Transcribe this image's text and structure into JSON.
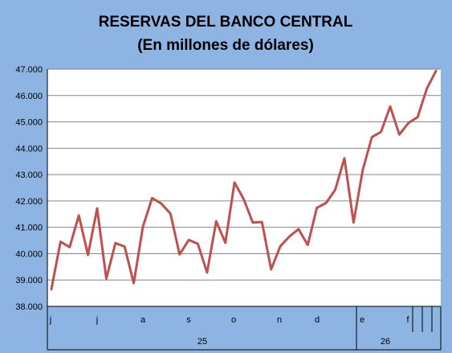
{
  "chart_data": {
    "type": "line",
    "title": "RESERVAS DEL BANCO CENTRAL",
    "subtitle": "(En millones de dólares)",
    "xlabel": "",
    "ylabel": "",
    "ylim": [
      38000,
      47000
    ],
    "y_ticks": [
      "38.000",
      "39.000",
      "40.000",
      "41.000",
      "42.000",
      "43.000",
      "44.000",
      "45.000",
      "46.000",
      "47.000"
    ],
    "grid": true,
    "legend": "none",
    "x_month_labels": [
      "j",
      "j",
      "a",
      "s",
      "o",
      "n",
      "d",
      "e",
      "f"
    ],
    "x_year_labels": [
      "25",
      "26"
    ],
    "line_color": "#c0504d",
    "plot_background": "#ffffff",
    "background": "#8db4e2",
    "series": [
      {
        "values": [
          38650,
          40450,
          40250,
          41450,
          39950,
          41720,
          39050,
          40400,
          40270,
          38880,
          41020,
          42110,
          41900,
          41520,
          39970,
          40520,
          40370,
          39280,
          41230,
          40410,
          42700,
          42070,
          41180,
          41200,
          39400,
          40280,
          40650,
          40930,
          40330,
          41740,
          41920,
          42420,
          43620,
          41180,
          43170,
          44420,
          44620,
          45580,
          44520,
          44960,
          45180,
          46260,
          46930
        ]
      }
    ]
  }
}
